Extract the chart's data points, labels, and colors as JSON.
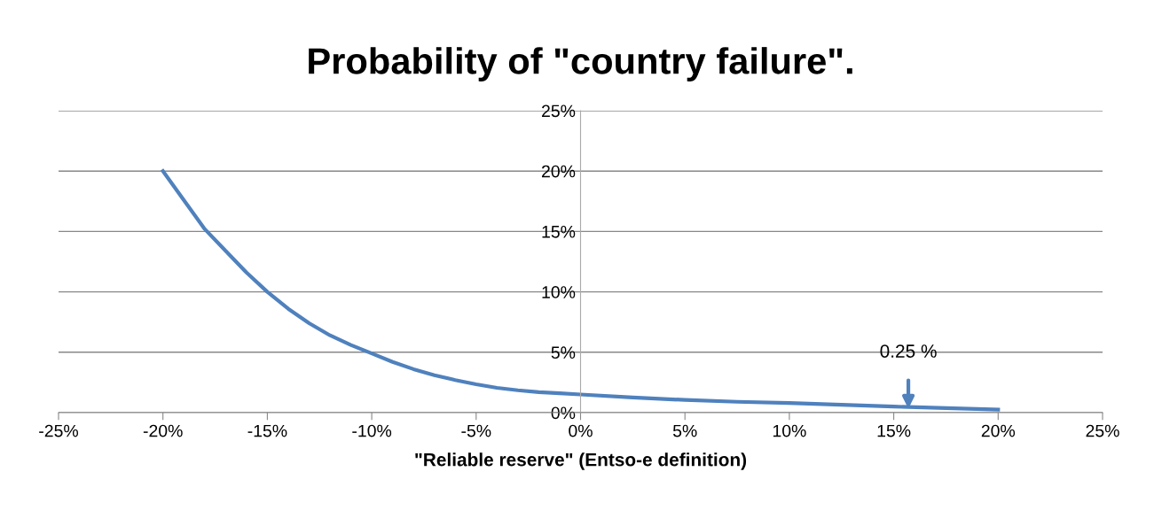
{
  "chart_data": {
    "type": "line",
    "title": "Probability of \"country failure\".",
    "xlabel": "\"Reliable reserve\" (Entso-e definition)",
    "x": [
      -20,
      -19,
      -18,
      -17,
      -16,
      -15,
      -14,
      -13,
      -12,
      -11,
      -10,
      -9,
      -8,
      -7,
      -6,
      -5,
      -4,
      -3,
      -2,
      -1,
      0,
      2.5,
      5,
      7.5,
      10,
      12.5,
      15,
      17.5,
      20
    ],
    "series": [
      {
        "color": "#4f81bd",
        "values": [
          20,
          17.6,
          15.2,
          13.4,
          11.6,
          10.0,
          8.6,
          7.4,
          6.4,
          5.6,
          4.9,
          4.2,
          3.6,
          3.1,
          2.7,
          2.35,
          2.05,
          1.85,
          1.7,
          1.6,
          1.5,
          1.25,
          1.05,
          0.9,
          0.8,
          0.65,
          0.5,
          0.38,
          0.25
        ]
      }
    ],
    "xlim": [
      -25,
      25
    ],
    "ylim": [
      0,
      25
    ],
    "xticks": [
      {
        "value": -25,
        "label": "-25%"
      },
      {
        "value": -20,
        "label": "-20%"
      },
      {
        "value": -15,
        "label": "-15%"
      },
      {
        "value": -10,
        "label": "-10%"
      },
      {
        "value": -5,
        "label": "-5%"
      },
      {
        "value": 0,
        "label": "0%"
      },
      {
        "value": 5,
        "label": "5%"
      },
      {
        "value": 10,
        "label": "10%"
      },
      {
        "value": 15,
        "label": "15%"
      },
      {
        "value": 20,
        "label": "20%"
      },
      {
        "value": 25,
        "label": "25%"
      }
    ],
    "yticks": [
      {
        "value": 0,
        "label": "0%"
      },
      {
        "value": 5,
        "label": "5%"
      },
      {
        "value": 10,
        "label": "10%"
      },
      {
        "value": 15,
        "label": "15%"
      },
      {
        "value": 20,
        "label": "20%"
      },
      {
        "value": 25,
        "label": "25%"
      }
    ],
    "grid": "y",
    "legend": false,
    "marker": "none",
    "line_style": "solid",
    "annotations": [
      "0.25 %"
    ]
  }
}
